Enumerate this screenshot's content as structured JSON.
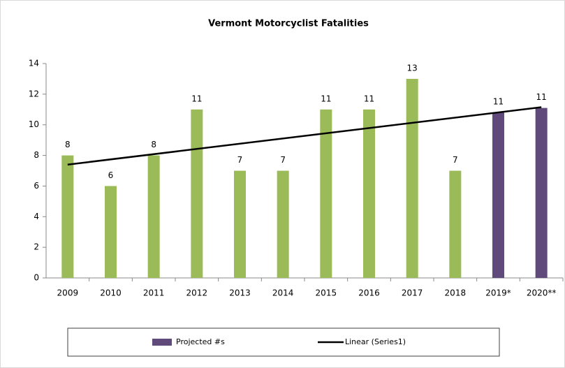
{
  "chart_data": {
    "type": "bar",
    "title": "Vermont Motorcyclist Fatalities",
    "categories": [
      "2009",
      "2010",
      "2011",
      "2012",
      "2013",
      "2014",
      "2015",
      "2016",
      "2017",
      "2018",
      "2019*",
      "2020**"
    ],
    "series": [
      {
        "color": "#9bbb59",
        "values": [
          8,
          6,
          8,
          11,
          7,
          7,
          11,
          11,
          13,
          7,
          null,
          null
        ]
      },
      {
        "name": "Projected #s",
        "color": "#604a7b",
        "values": [
          null,
          null,
          null,
          null,
          null,
          null,
          null,
          null,
          null,
          null,
          10.8,
          11.1
        ],
        "value_labels": [
          null,
          null,
          null,
          null,
          null,
          null,
          null,
          null,
          null,
          null,
          "11",
          "11"
        ]
      }
    ],
    "trendline": {
      "name": "Linear (Series1)",
      "color": "#000000",
      "values": [
        7.4,
        11.15
      ]
    },
    "ylim": [
      0,
      14
    ],
    "yticks": [
      0,
      2,
      4,
      6,
      8,
      10,
      12,
      14
    ],
    "legend": "bottom"
  }
}
